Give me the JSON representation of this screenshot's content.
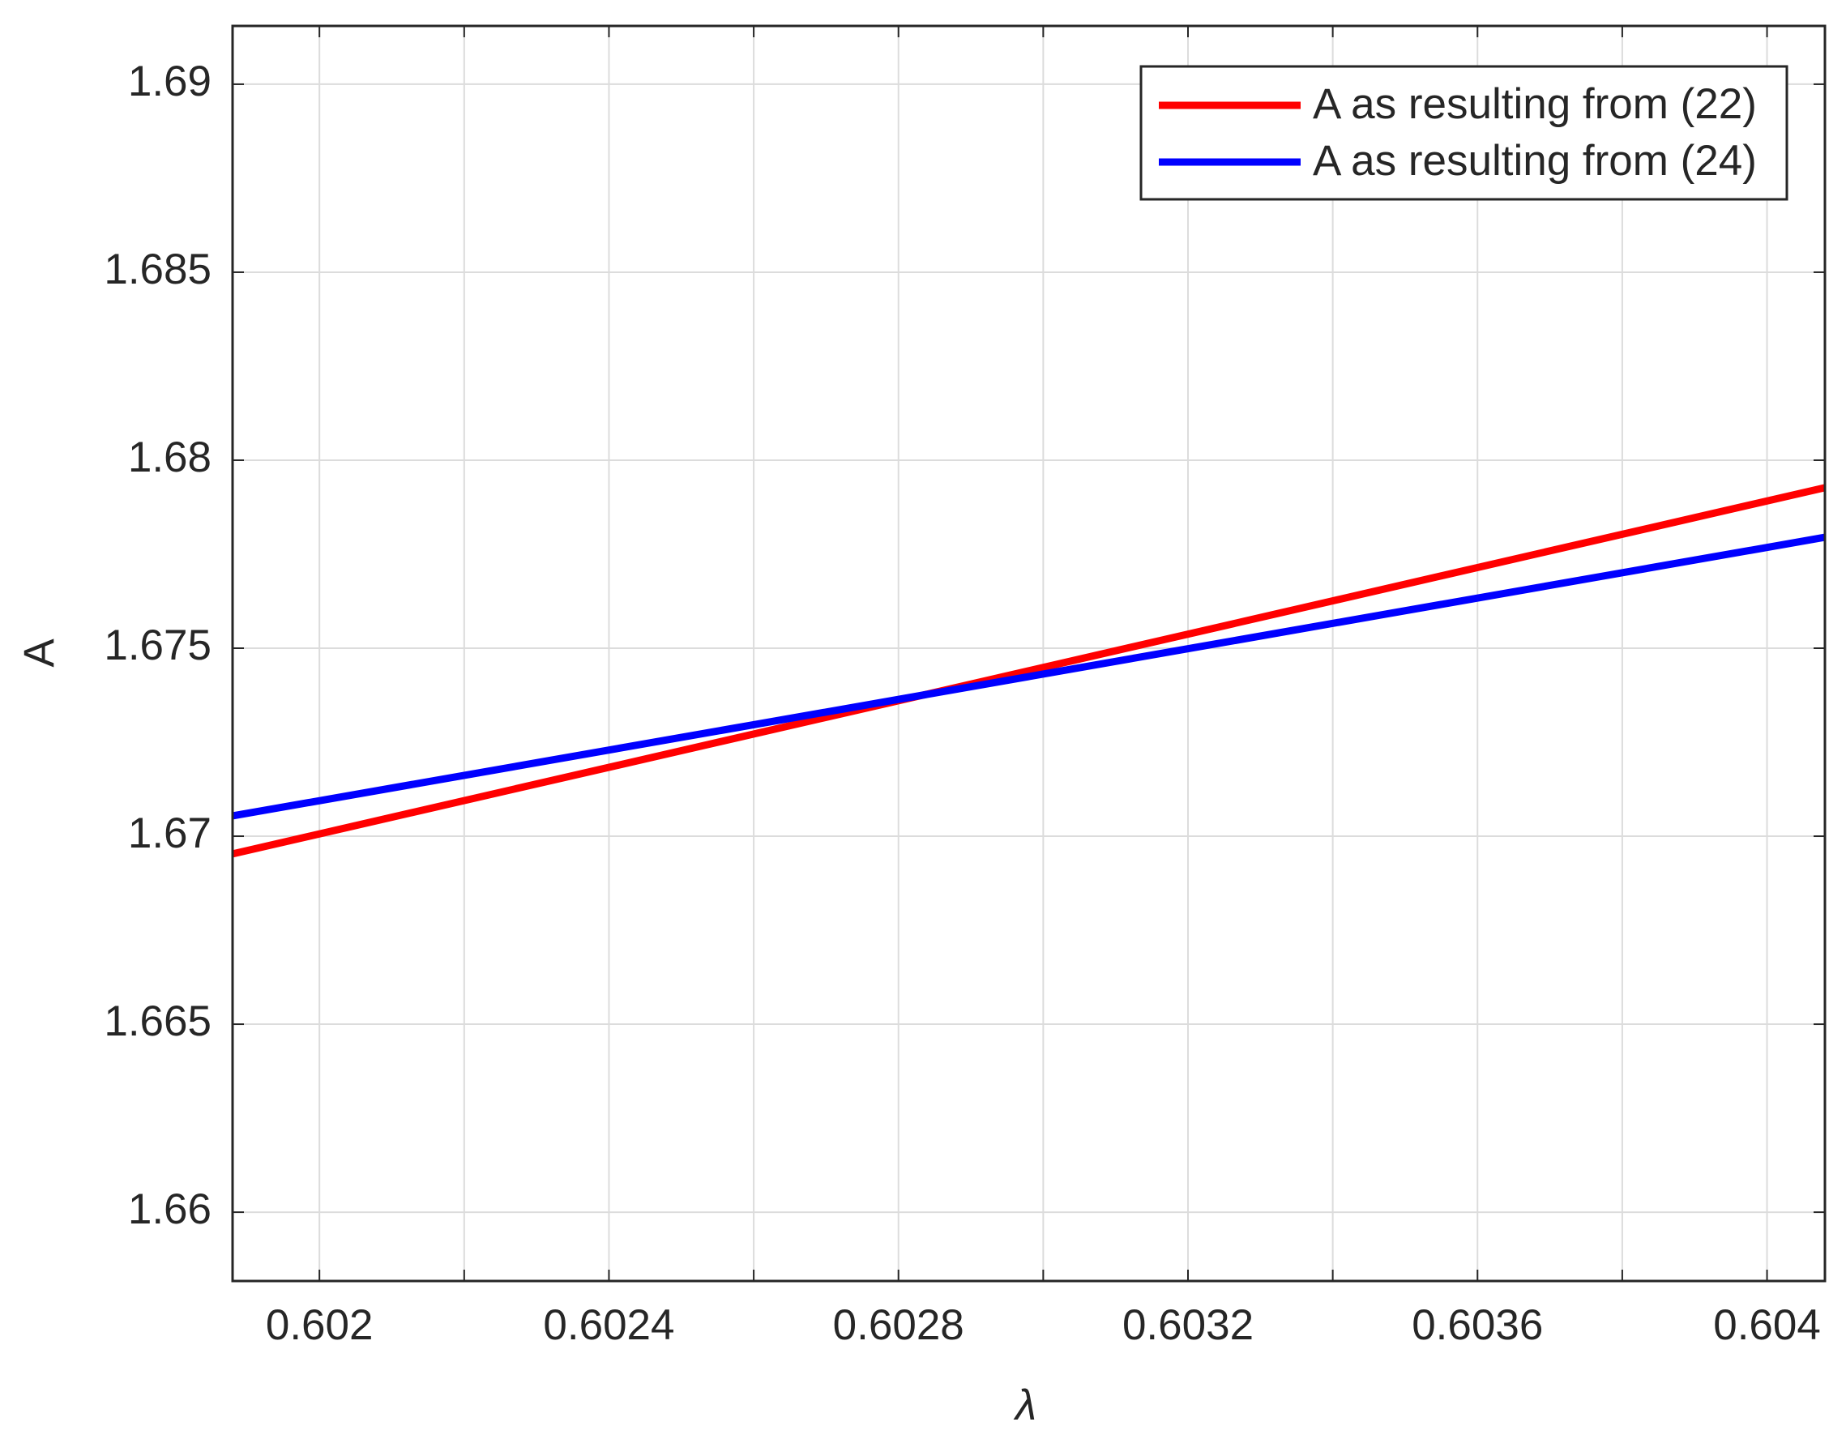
{
  "chart_data": {
    "type": "line",
    "x_label": "λ",
    "y_label": "A",
    "x": [
      0.60188,
      0.60408
    ],
    "series": [
      {
        "name": "A as resulting from (22)",
        "color": "#ff0000",
        "values": [
          1.66953,
          1.67927
        ]
      },
      {
        "name": "A as resulting from (24)",
        "color": "#0000ff",
        "values": [
          1.67054,
          1.67795
        ]
      }
    ],
    "xlim": [
      0.60188,
      0.60408
    ],
    "xticks": [
      0.602,
      0.6024,
      0.6028,
      0.6032,
      0.6036,
      0.604
    ],
    "xminor": [
      0.6022,
      0.6026,
      0.603,
      0.6034,
      0.6038
    ],
    "ylim": [
      1.65817,
      1.69155
    ],
    "yticks": [
      1.66,
      1.665,
      1.67,
      1.675,
      1.68,
      1.685,
      1.69
    ],
    "grid": true,
    "legend": "top-right"
  }
}
